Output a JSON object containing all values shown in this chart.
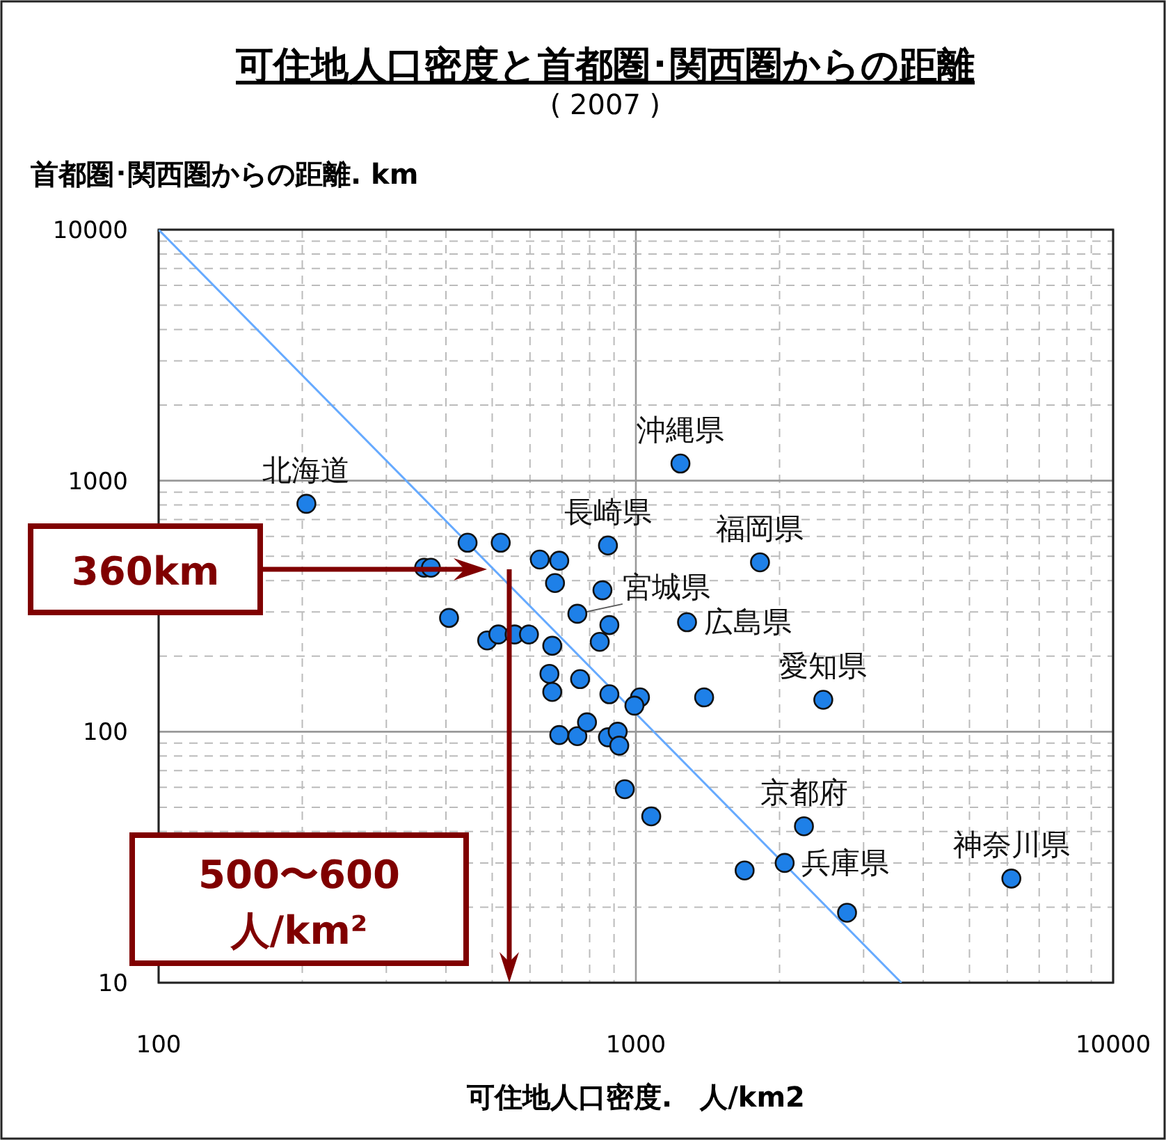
{
  "chart_data": {
    "type": "scatter",
    "title": "可住地人口密度と首都圏･関西圏からの距離",
    "subtitle": "( 2007 )",
    "ylabel": "首都圏･関西圏からの距離.  km",
    "xlabel": "可住地人口密度.　人/km2",
    "log": "xy",
    "xlim": [
      100,
      10000
    ],
    "ylim": [
      10,
      10000
    ],
    "xticks": [
      100,
      1000,
      10000
    ],
    "yticks": [
      10,
      100,
      1000,
      10000
    ],
    "grid": true,
    "series": [
      {
        "type": "line",
        "color": "#66aaff",
        "x": [
          100,
          3600
        ],
        "values": [
          10000,
          10
        ]
      },
      {
        "color": "#1e80e8",
        "marker": "circle",
        "x": [
          204,
          444,
          521,
          360,
          372,
          406,
          488,
          515,
          557,
          597,
          629,
          691,
          677,
          874,
          851,
          754,
          880,
          840,
          668,
          659,
          668,
          764,
          880,
          1020,
          993,
          1390,
          691,
          754,
          790,
          874,
          916,
          923,
          1240,
          1820,
          1280,
          2470,
          948,
          1077,
          1690,
          2050,
          2250,
          2770,
          6120
        ],
        "values": [
          809,
          566,
          566,
          450,
          450,
          284,
          231,
          244,
          244,
          244,
          485,
          480,
          391,
          552,
          366,
          295,
          266,
          228,
          220,
          170,
          144,
          162,
          141,
          137,
          127,
          137,
          97,
          96,
          109,
          95,
          100,
          88,
          1170,
          473,
          273,
          134,
          59,
          46,
          28,
          30,
          42,
          19,
          26
        ]
      }
    ],
    "annotations": [
      {
        "text": "北海道",
        "x": 204,
        "y": 809
      },
      {
        "text": "沖縄県",
        "x": 1240,
        "y": 1170
      },
      {
        "text": "長崎県",
        "x": 874,
        "y": 552
      },
      {
        "text": "福岡県",
        "x": 1820,
        "y": 473
      },
      {
        "text": "宮城県",
        "x": 754,
        "y": 295
      },
      {
        "text": "広島県",
        "x": 1280,
        "y": 273
      },
      {
        "text": "愛知県",
        "x": 2470,
        "y": 134
      },
      {
        "text": "京都府",
        "x": 2250,
        "y": 42
      },
      {
        "text": "兵庫県",
        "x": 2050,
        "y": 30
      },
      {
        "text": "神奈川県",
        "x": 6120,
        "y": 26
      },
      "360km",
      "500〜600\n人/km²"
    ]
  }
}
